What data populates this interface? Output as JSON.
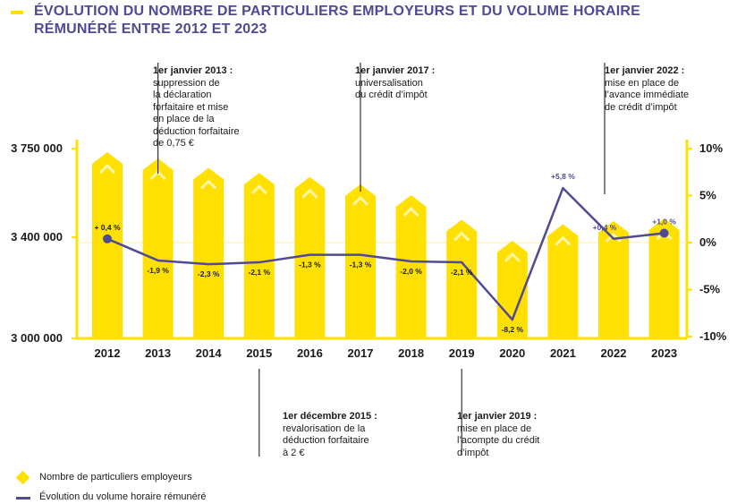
{
  "title": {
    "line1": "ÉVOLUTION DU NOMBRE DE PARTICULIERS EMPLOYEURS ET DU VOLUME HORAIRE",
    "line2": "RÉMUNÉRÉ ENTRE 2012 ET 2023"
  },
  "colors": {
    "bar": "#ffe000",
    "line": "#4f4a96",
    "title": "#4f4a96",
    "accent_chevron": "#fff6a8"
  },
  "chart_data": {
    "type": "bar",
    "categories": [
      "2012",
      "2013",
      "2014",
      "2015",
      "2016",
      "2017",
      "2018",
      "2019",
      "2020",
      "2021",
      "2022",
      "2023"
    ],
    "series": [
      {
        "name": "Nombre de particuliers employeurs",
        "type": "bar",
        "axis": "left",
        "values": [
          3690000,
          3665000,
          3628000,
          3608000,
          3592000,
          3563000,
          3520000,
          3423000,
          3340000,
          3405000,
          3418000,
          3428000
        ]
      },
      {
        "name": "Évolution du volume horaire rémunéré",
        "type": "line",
        "axis": "right",
        "values": [
          0.4,
          -1.9,
          -2.3,
          -2.1,
          -1.3,
          -1.3,
          -2.0,
          -2.1,
          -8.2,
          5.8,
          0.4,
          1.0
        ],
        "labels": [
          "+ 0,4 %",
          "-1,9 %",
          "-2,3 %",
          "-2,1 %",
          "-1,3 %",
          "-1,3 %",
          "-2,0 %",
          "-2,1 %",
          "-8,2 %",
          "+5,8 %",
          "+0,4 %",
          "+1,0 %"
        ]
      }
    ],
    "y_left": {
      "ylim": [
        3000000,
        3750000
      ],
      "ticks": [
        "3 000 000",
        "3 400 000",
        "3 750 000"
      ],
      "tick_values": [
        3000000,
        3400000,
        3750000
      ]
    },
    "y_right": {
      "ylim": [
        -10,
        10
      ],
      "ticks": [
        "10%",
        "5%",
        "0%",
        "-5%",
        "-10%"
      ],
      "tick_values": [
        10,
        5,
        0,
        -5,
        -10
      ]
    },
    "annotations": [
      {
        "year": "2013",
        "position": "top",
        "date": "1er janvier 2013 :",
        "text": "suppression de\nla déclaration\nforfaitaire et mise\nen place de la\ndéduction forfaitaire\nde 0,75 €"
      },
      {
        "year": "2017",
        "position": "top",
        "date": "1er janvier 2017 :",
        "text": "universalisation\ndu crédit d’impôt"
      },
      {
        "year": "2022",
        "position": "top",
        "date": "1er janvier 2022 :",
        "text": "mise en place de\nl’avance immédiate\nde crédit d’impôt"
      },
      {
        "year": "2015",
        "position": "bottom",
        "date": "1er décembre 2015 :",
        "text": "revalorisation de la\ndéduction forfaitaire\nà 2 €"
      },
      {
        "year": "2019",
        "position": "bottom",
        "date": "1er janvier 2019 :",
        "text": "mise en place de\nl’acompte du crédit\nd’impôt"
      }
    ],
    "legend": {
      "placement": "bottom-left",
      "items": [
        {
          "label": "Nombre de particuliers employeurs",
          "marker": "diamond"
        },
        {
          "label": "Évolution du volume horaire rémunéré",
          "marker": "line"
        }
      ]
    }
  }
}
